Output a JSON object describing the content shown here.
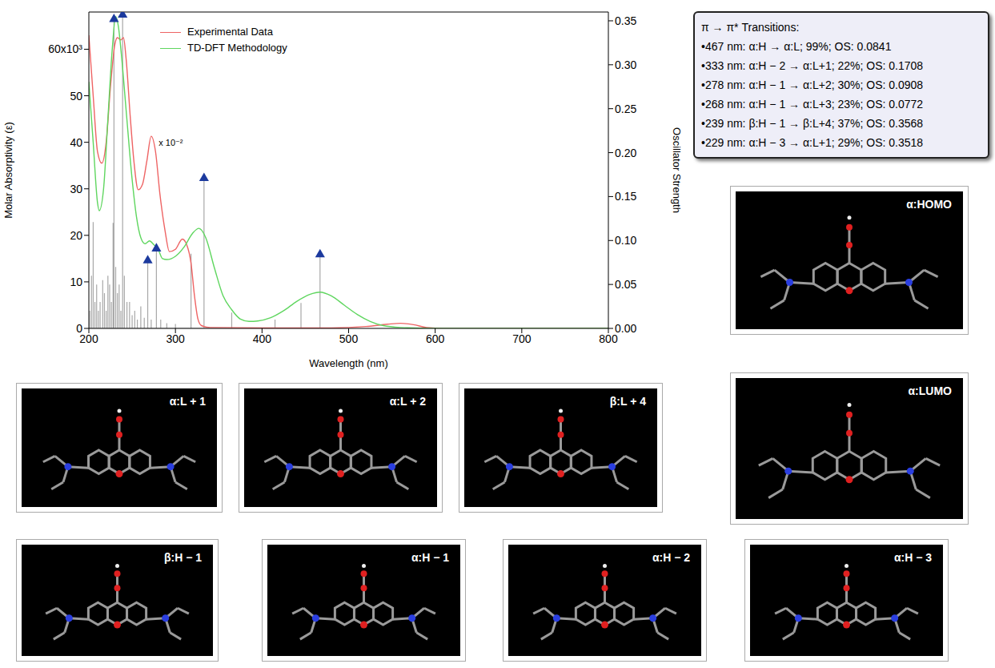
{
  "chart_data": {
    "type": "line",
    "xlabel": "Wavelength (nm)",
    "ylabel": "Molar Absorptivity  (ε)",
    "y2label": "Oscillator Strength",
    "xlim": [
      200,
      800
    ],
    "xticks": [
      200,
      300,
      400,
      500,
      600,
      700,
      800
    ],
    "ylim": [
      0,
      68000
    ],
    "yticks": [
      0,
      {
        "value": 10000,
        "label": "10"
      },
      {
        "value": 20000,
        "label": "20"
      },
      {
        "value": 30000,
        "label": "30"
      },
      {
        "value": 40000,
        "label": "40"
      },
      {
        "value": 50000,
        "label": "50"
      },
      {
        "value": 60000,
        "label": "60x10³"
      }
    ],
    "y2lim": [
      0,
      0.36
    ],
    "y2ticks": [
      {
        "value": 0,
        "label": "0.00"
      },
      0.05,
      {
        "value": 0.1,
        "label": "0.10"
      },
      0.15,
      {
        "value": 0.2,
        "label": "0.20"
      },
      0.25,
      {
        "value": 0.3,
        "label": "0.30"
      },
      0.35
    ],
    "grid": false,
    "legend": "upper left",
    "series": [
      {
        "name": "Experimental Data",
        "color": "#ee6464",
        "x": [
          200,
          205,
          210,
          215,
          220,
          225,
          230,
          233,
          237,
          240,
          243,
          248,
          252,
          257,
          262,
          267,
          272,
          277,
          282,
          288,
          293,
          300,
          308,
          313,
          318,
          322,
          326,
          330,
          340,
          400,
          480,
          520,
          545,
          560,
          575,
          590,
          610,
          800
        ],
        "values": [
          63000,
          50000,
          38000,
          35500,
          40000,
          52000,
          61000,
          62500,
          62000,
          62500,
          58000,
          45000,
          36000,
          29800,
          31000,
          36000,
          41300,
          38000,
          29000,
          21000,
          16500,
          17000,
          19200,
          18000,
          14000,
          7000,
          2000,
          600,
          200,
          100,
          100,
          400,
          900,
          1100,
          800,
          200,
          0,
          0
        ]
      },
      {
        "name": "TD-DFT Methodology",
        "color": "#5fd65f",
        "x": [
          200,
          205,
          210,
          212,
          217,
          222,
          227,
          231,
          234,
          238,
          243,
          250,
          255,
          260,
          265,
          270,
          275,
          280,
          285,
          290,
          300,
          310,
          320,
          327,
          335,
          345,
          355,
          365,
          375,
          385,
          395,
          410,
          425,
          440,
          455,
          467,
          480,
          495,
          510,
          525,
          540,
          560,
          600,
          800
        ],
        "values": [
          53000,
          40000,
          27000,
          25300,
          30000,
          45000,
          60000,
          67000,
          65000,
          58000,
          47000,
          32000,
          24000,
          19500,
          18200,
          18800,
          18000,
          17000,
          15000,
          14800,
          15500,
          17500,
          20500,
          21500,
          19500,
          13000,
          7000,
          4000,
          2000,
          1500,
          1600,
          2300,
          3800,
          5800,
          7300,
          7800,
          7000,
          5000,
          3000,
          1500,
          600,
          200,
          0,
          0
        ]
      }
    ],
    "oscillator_strengths": {
      "type": "bar",
      "axis": "y2",
      "color": "#a8a8a8",
      "x": [
        201,
        203,
        205,
        207,
        209,
        211,
        213,
        216,
        218,
        220,
        222,
        224,
        226,
        228,
        229,
        231,
        233,
        235,
        237,
        239,
        241,
        244,
        247,
        250,
        253,
        256,
        260,
        264,
        268,
        272,
        278,
        283,
        290,
        300,
        318,
        333,
        365,
        415,
        445,
        467
      ],
      "values": [
        0.02,
        0.06,
        0.121,
        0.03,
        0.05,
        0.02,
        0.03,
        0.055,
        0.04,
        0.02,
        0.06,
        0.05,
        0.03,
        0.12,
        0.3518,
        0.07,
        0.04,
        0.05,
        0.02,
        0.3568,
        0.06,
        0.03,
        0.03,
        0.015,
        0.02,
        0.01,
        0.025,
        0.012,
        0.0772,
        0.01,
        0.0908,
        0.01,
        0.006,
        0.005,
        0.085,
        0.1708,
        0.018,
        0.01,
        0.029,
        0.0841
      ]
    },
    "transitions": {
      "type": "scatter",
      "axis": "y2",
      "color": "#1c3a9e",
      "marker": "triangle",
      "x": [
        467,
        333,
        278,
        268,
        239,
        229
      ],
      "values": [
        0.0841,
        0.1708,
        0.0908,
        0.0772,
        0.3568,
        0.3518
      ]
    },
    "annotations": [
      {
        "text": "x 10⁻²",
        "x": 276,
        "y": 40000
      }
    ]
  },
  "text_box": {
    "title": "π → π* Transitions:",
    "lines": [
      "•467 nm: α:H → α:L; 99%; OS: 0.0841",
      "•333 nm: α:H − 2 → α:L+1; 22%; OS: 0.1708",
      "•278 nm: α:H − 1 → α:L+2; 30%; OS: 0.0908",
      "•268 nm: α:H − 1 → α:L+3; 23%; OS: 0.0772",
      "•239 nm: β:H − 1 → β:L+4; 37%; OS: 0.3568",
      "•229 nm: α:H − 3 → α:L+1; 29%; OS: 0.3518"
    ]
  },
  "orbitals": [
    {
      "label": "α:HOMO"
    },
    {
      "label": "α:LUMO"
    },
    {
      "label": "α:L + 1"
    },
    {
      "label": "α:L + 2"
    },
    {
      "label": "β:L + 4"
    },
    {
      "label": "β:H − 1"
    },
    {
      "label": "α:H − 1"
    },
    {
      "label": "α:H − 2"
    },
    {
      "label": "α:H − 3"
    }
  ]
}
